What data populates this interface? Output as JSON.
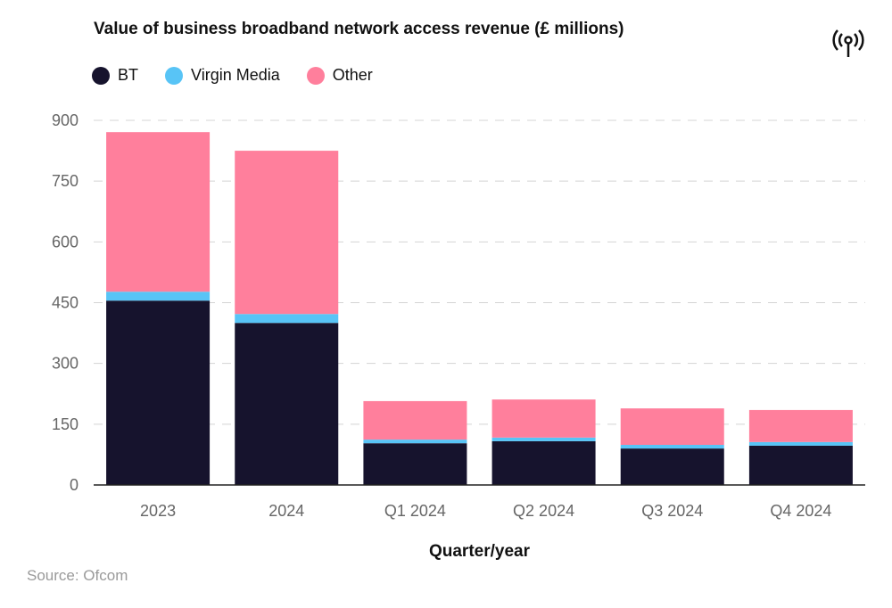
{
  "chart_data": {
    "type": "bar",
    "stacked": true,
    "title": "Value of business broadband network access revenue (£ millions)",
    "xlabel": "Quarter/year",
    "ylabel": "",
    "ylim": [
      0,
      900
    ],
    "yticks": [
      0,
      150,
      300,
      450,
      600,
      750,
      900
    ],
    "grid": true,
    "legend_position": "top-left",
    "categories": [
      "2023",
      "2024",
      "Q1 2024",
      "Q2 2024",
      "Q3 2024",
      "Q4 2024"
    ],
    "series": [
      {
        "name": "BT",
        "color": "#16132d",
        "values": [
          455,
          400,
          103,
          108,
          90,
          97
        ]
      },
      {
        "name": "Virgin Media",
        "color": "#58c4f6",
        "values": [
          22,
          22,
          9,
          9,
          9,
          9
        ]
      },
      {
        "name": "Other",
        "color": "#ff7f9c",
        "values": [
          394,
          403,
          95,
          94,
          90,
          79
        ]
      }
    ]
  },
  "source": "Source: Ofcom",
  "logo_icon": "broadcast-signal-icon"
}
